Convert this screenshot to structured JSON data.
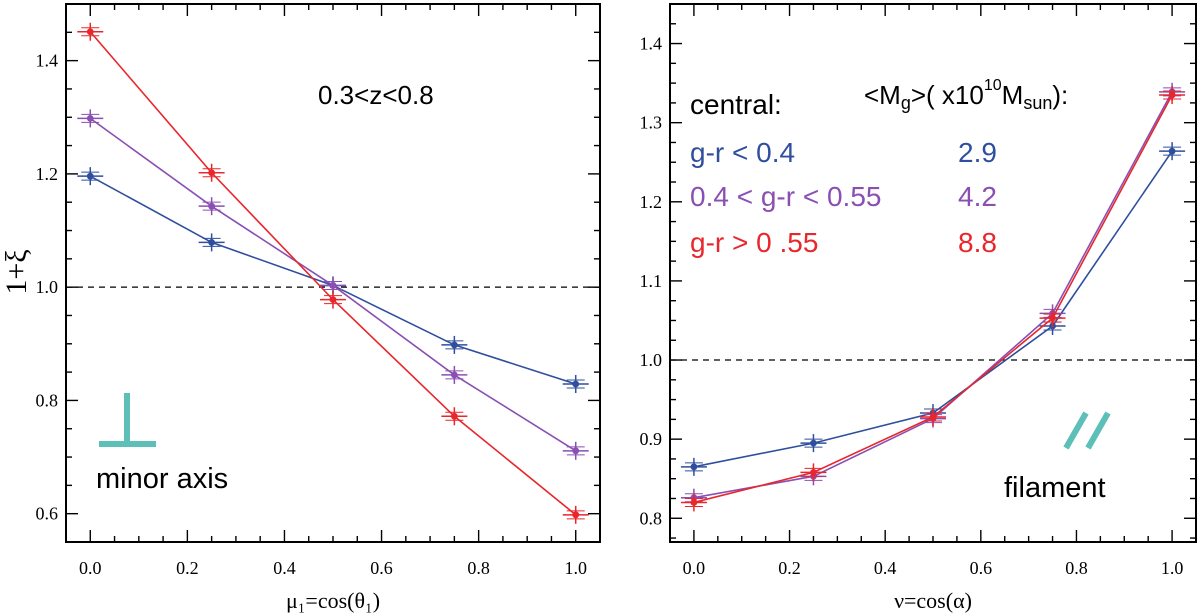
{
  "chart_data": [
    {
      "type": "line",
      "ylabel": "1+ξ",
      "xlabel": "μ₁=cos(θ₁)",
      "xlim": [
        -0.05,
        1.05
      ],
      "ylim": [
        0.55,
        1.5
      ],
      "xticks": [
        0.0,
        0.2,
        0.4,
        0.6,
        0.8,
        1.0
      ],
      "xtick_labels": [
        "0.0",
        "0.2",
        "0.4",
        "0.6",
        "0.8",
        "1.0"
      ],
      "yticks": [
        0.6,
        0.8,
        1.0,
        1.2,
        1.4
      ],
      "ytick_labels": [
        "0.6",
        "0.8",
        "1.0",
        "1.2",
        "1.4"
      ],
      "reference_line": 1.0,
      "annotation": "0.3<z<0.8",
      "symbol_label": "minor axis",
      "x": [
        0.0,
        0.25,
        0.5,
        0.75,
        1.0
      ],
      "series": [
        {
          "name": "g-r < 0.4",
          "color": "#2f4f9e",
          "values": [
            1.196,
            1.079,
            1.003,
            0.898,
            0.829
          ]
        },
        {
          "name": "0.4 < g-r < 0.55",
          "color": "#8a4fb3",
          "values": [
            1.298,
            1.143,
            1.003,
            0.845,
            0.711
          ]
        },
        {
          "name": "g-r > 0 .55",
          "color": "#e8262b",
          "values": [
            1.451,
            1.202,
            0.978,
            0.772,
            0.598
          ]
        }
      ]
    },
    {
      "type": "line",
      "ylabel": "",
      "xlabel": "ν=cos(α)",
      "xlim": [
        -0.05,
        1.05
      ],
      "ylim": [
        0.77,
        1.45
      ],
      "xticks": [
        0.0,
        0.2,
        0.4,
        0.6,
        0.8,
        1.0
      ],
      "xtick_labels": [
        "0.0",
        "0.2",
        "0.4",
        "0.6",
        "0.8",
        "1.0"
      ],
      "yticks": [
        0.8,
        0.9,
        1.0,
        1.1,
        1.2,
        1.3,
        1.4
      ],
      "ytick_labels": [
        "0.8",
        "0.9",
        "1.0",
        "1.1",
        "1.2",
        "1.3",
        "1.4"
      ],
      "reference_line": 1.0,
      "symbol_label": "filament",
      "legend_header": "central:",
      "mass_header_prefix": "<M",
      "mass_header_sub": "g",
      "mass_header_mid": ">( x10",
      "mass_header_sup": "10",
      "mass_header_unit": "M",
      "mass_header_unit_sub": "sun",
      "mass_header_suffix": "):",
      "legend": [
        {
          "label": "g-r < 0.4",
          "mass": "2.9",
          "color": "#2f4f9e"
        },
        {
          "label": "0.4 < g-r < 0.55",
          "mass": "4.2",
          "color": "#8a4fb3"
        },
        {
          "label": "g-r > 0 .55",
          "mass": "8.8",
          "color": "#e8262b"
        }
      ],
      "x": [
        0.0,
        0.25,
        0.5,
        0.75,
        1.0
      ],
      "series": [
        {
          "name": "g-r < 0.4",
          "color": "#2f4f9e",
          "values": [
            0.865,
            0.895,
            0.933,
            1.043,
            1.264
          ]
        },
        {
          "name": "0.4 < g-r < 0.55",
          "color": "#8a4fb3",
          "values": [
            0.826,
            0.853,
            0.926,
            1.059,
            1.339
          ]
        },
        {
          "name": "g-r > 0 .55",
          "color": "#e8262b",
          "values": [
            0.82,
            0.858,
            0.928,
            1.053,
            1.335
          ]
        }
      ]
    }
  ],
  "colors": {
    "symbol": "#5cbfb8",
    "axis": "#000000",
    "reference": "#000000"
  }
}
